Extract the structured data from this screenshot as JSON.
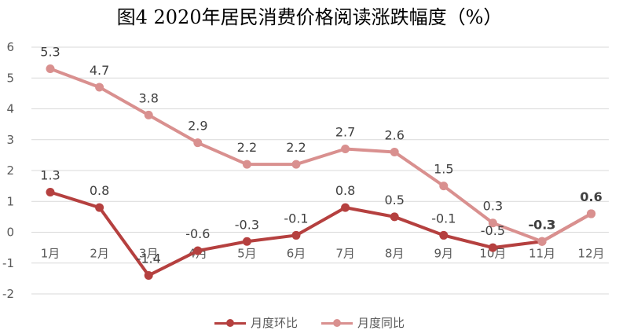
{
  "chart_data": {
    "type": "line",
    "title": "图4  2020年居民消费价格阅读涨跌幅度（%）",
    "categories": [
      "1月",
      "2月",
      "3月",
      "4月",
      "5月",
      "6月",
      "7月",
      "8月",
      "9月",
      "10月",
      "11月",
      "12月"
    ],
    "ylim": [
      -2,
      6
    ],
    "yticks": [
      "-2",
      "-1",
      "0",
      "1",
      "2",
      "3",
      "4",
      "5",
      "6"
    ],
    "grid": true,
    "legend_position": "bottom",
    "series": [
      {
        "name": "月度环比",
        "color": "#b5403f",
        "values": [
          1.3,
          0.8,
          -1.4,
          -0.6,
          -0.3,
          -0.1,
          0.8,
          0.5,
          -0.1,
          -0.5,
          -0.3,
          0.6
        ],
        "labels": [
          "1.3",
          "0.8",
          "-1.4",
          "-0.6",
          "-0.3",
          "-0.1",
          "0.8",
          "0.5",
          "-0.1",
          "-0.5",
          "-0.3",
          ""
        ]
      },
      {
        "name": "月度同比",
        "color": "#d9908f",
        "values": [
          5.3,
          4.7,
          3.8,
          2.9,
          2.2,
          2.2,
          2.7,
          2.6,
          1.5,
          0.3,
          -0.3,
          0.6
        ],
        "labels": [
          "5.3",
          "4.7",
          "3.8",
          "2.9",
          "2.2",
          "2.2",
          "2.7",
          "2.6",
          "1.5",
          "0.3",
          "-0.3",
          "0.6"
        ]
      }
    ]
  }
}
